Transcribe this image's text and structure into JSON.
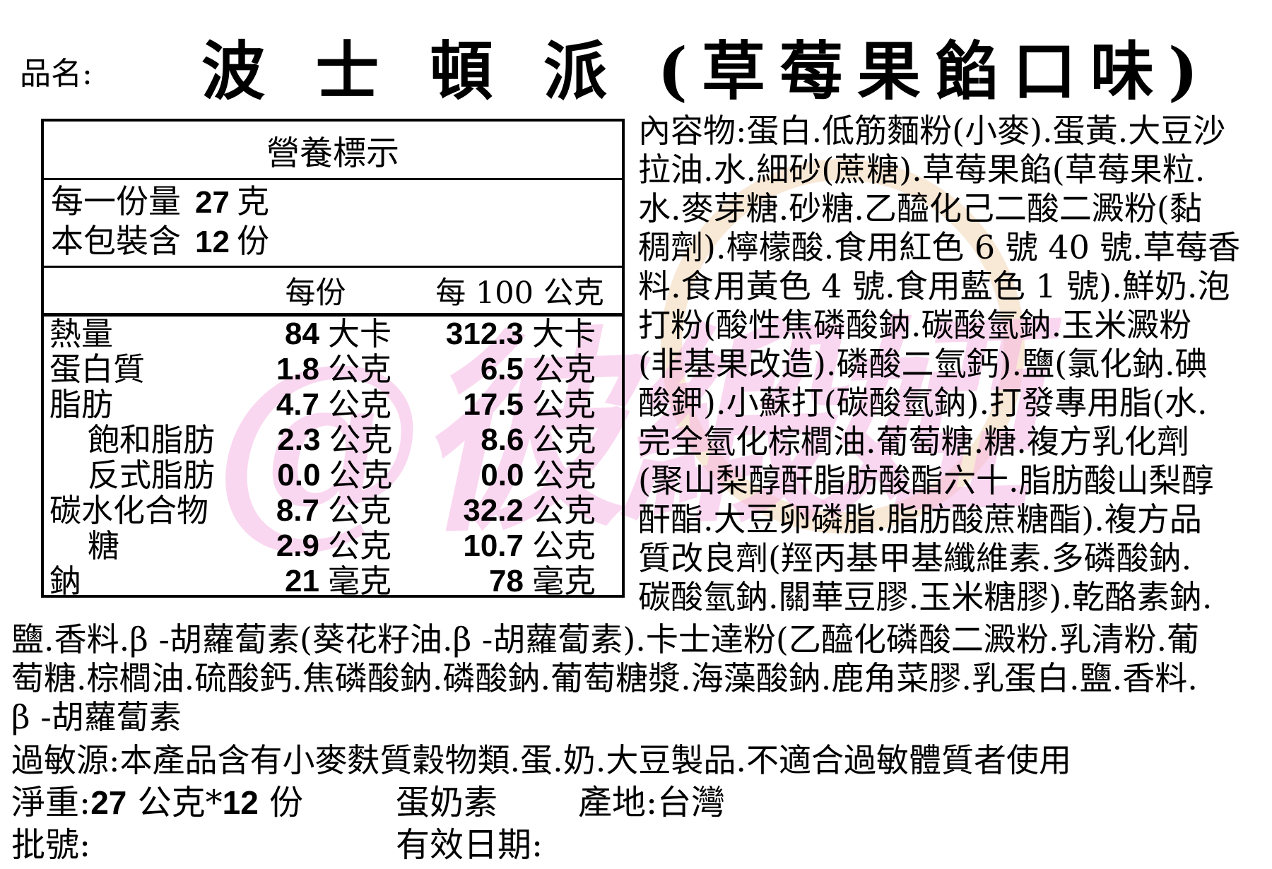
{
  "product": {
    "label": "品名:",
    "title": "波 士 頓 派 (草莓果餡口味)"
  },
  "nutrition": {
    "title": "營養標示",
    "serving_size": {
      "label": "每一份量",
      "value": "27",
      "unit": "克"
    },
    "servings_per_pack": {
      "label": "本包裝含",
      "value": "12",
      "unit": "份"
    },
    "col_headers": [
      "每份",
      "每 100 公克"
    ],
    "rows": [
      {
        "label": "熱量",
        "v1": "84",
        "u1": "大卡",
        "v2": "312.3",
        "u2": "大卡"
      },
      {
        "label": "蛋白質",
        "v1": "1.8",
        "u1": "公克",
        "v2": "6.5",
        "u2": "公克"
      },
      {
        "label": "脂肪",
        "v1": "4.7",
        "u1": "公克",
        "v2": "17.5",
        "u2": "公克"
      },
      {
        "label": "飽和脂肪",
        "v1": "2.3",
        "u1": "公克",
        "v2": "8.6",
        "u2": "公克"
      },
      {
        "label": "反式脂肪",
        "v1": "0.0",
        "u1": "公克",
        "v2": "0.0",
        "u2": "公克"
      },
      {
        "label": "碳水化合物",
        "v1": "8.7",
        "u1": "公克",
        "v2": "32.2",
        "u2": "公克"
      },
      {
        "label": "糖",
        "v1": "2.9",
        "u1": "公克",
        "v2": "10.7",
        "u2": "公克"
      },
      {
        "label": "鈉",
        "v1": "21",
        "u1": "毫克",
        "v2": "78",
        "u2": "毫克"
      }
    ]
  },
  "ingredients": {
    "lines": [
      "內容物:蛋白.低筋麵粉(小麥).蛋黃.大豆沙",
      "拉油.水.細砂(蔗糖).草莓果餡(草莓果粒.",
      "水.麥芽糖.砂糖.乙醯化己二酸二澱粉(黏",
      "稠劑).檸檬酸.食用紅色 6 號 40 號.草莓香",
      "料.食用黃色 4 號.食用藍色 1 號).鮮奶.泡",
      "打粉(酸性焦磷酸鈉.碳酸氫鈉.玉米澱粉",
      "(非基果改造).磷酸二氫鈣).鹽(氯化鈉.碘",
      "酸鉀).小蘇打(碳酸氫鈉).打發專用脂(水.",
      "完全氫化棕櫚油.葡萄糖.糖.複方乳化劑",
      "(聚山梨醇酐脂肪酸酯六十.脂肪酸山梨醇",
      "酐酯.大豆卵磷脂.脂肪酸蔗糖酯).複方品",
      "質改良劑(羥丙基甲基纖維素.多磷酸鈉.",
      "碳酸氫鈉.關華豆膠.玉米糖膠).乾酪素鈉."
    ]
  },
  "ingredients_bottom": {
    "lines": [
      "鹽.香料.β -胡蘿蔔素(葵花籽油.β -胡蘿蔔素).卡士達粉(乙醯化磷酸二澱粉.乳清粉.葡",
      "萄糖.棕櫚油.硫酸鈣.焦磷酸鈉.磷酸鈉.葡萄糖漿.海藻酸鈉.鹿角菜膠.乳蛋白.鹽.香料.",
      "β -胡蘿蔔素"
    ]
  },
  "allergen": "過敏源:本產品含有小麥麩質穀物類.蛋.奶.大豆製品.不適合過敏體質者使用",
  "footer": {
    "net_prefix": "淨重:",
    "net_v1": "27",
    "net_mid": " 公克*",
    "net_v2": "12",
    "net_suffix": " 份",
    "diet": "蛋奶素",
    "origin": "產地:台灣",
    "batch": "批號:",
    "expiry": "有效日期:"
  },
  "watermark": {
    "text": "@彼緞婭"
  },
  "colors": {
    "text": "#000000",
    "background": "#ffffff",
    "watermark_pink": "#f6b7e3",
    "watermark_tan": "#f2d6b4"
  }
}
